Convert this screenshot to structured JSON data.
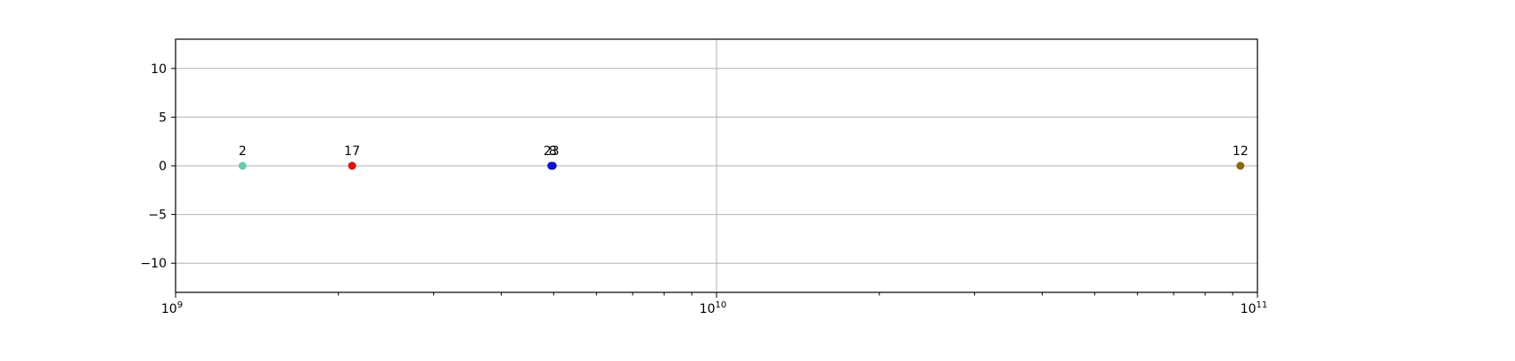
{
  "chart_data": {
    "type": "scatter",
    "title": "",
    "xlabel": "",
    "ylabel": "",
    "xscale": "log",
    "xlim": [
      1000000000,
      100000000000
    ],
    "ylim": [
      -13,
      13
    ],
    "grid": true,
    "x_major_ticks": [
      {
        "value": 1000000000,
        "base": "10",
        "exp": "9"
      },
      {
        "value": 10000000000,
        "base": "10",
        "exp": "10"
      },
      {
        "value": 100000000000,
        "base": "10",
        "exp": "11"
      }
    ],
    "y_ticks": [
      {
        "value": 10,
        "label": "10"
      },
      {
        "value": 5,
        "label": "5"
      },
      {
        "value": 0,
        "label": "0"
      },
      {
        "value": -5,
        "label": "−5"
      },
      {
        "value": -10,
        "label": "−10"
      }
    ],
    "points": [
      {
        "label": "2",
        "x": 1330000000,
        "y": 0,
        "color": "#66cdaa"
      },
      {
        "label": "17",
        "x": 2120000000,
        "y": 0,
        "color": "#dd1111"
      },
      {
        "label": "23",
        "x": 4950000000,
        "y": 0,
        "color": "#1111cc"
      },
      {
        "label": "8",
        "x": 4980000000,
        "y": 0,
        "color": "#1111cc"
      },
      {
        "label": "12",
        "x": 93000000000,
        "y": 0,
        "color": "#8b6914"
      }
    ]
  }
}
